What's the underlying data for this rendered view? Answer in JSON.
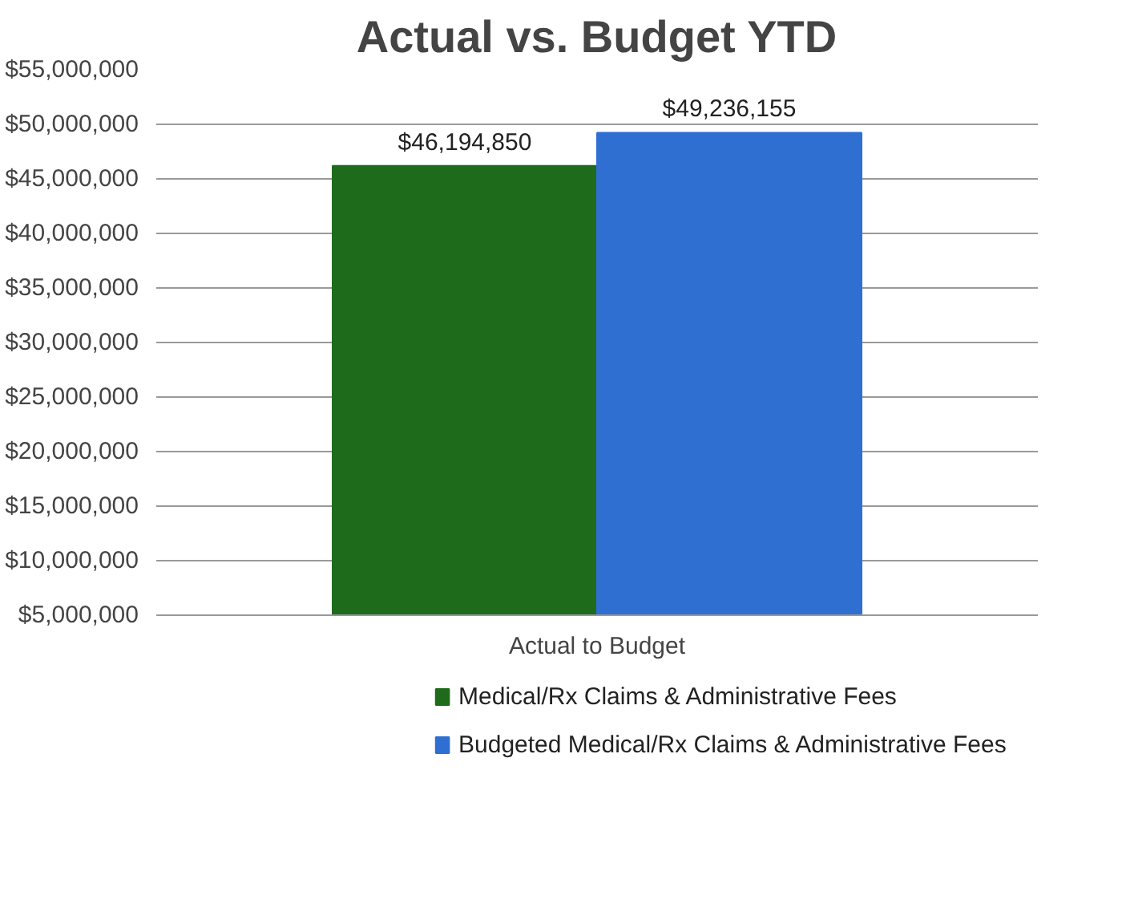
{
  "chart_data": {
    "type": "bar",
    "title": "Actual vs. Budget YTD",
    "categories": [
      "Actual to Budget"
    ],
    "series": [
      {
        "name": "Medical/Rx Claims & Administrative Fees",
        "color": "#1f6b1c",
        "values": [
          46194850
        ],
        "value_labels": [
          "$46,194,850"
        ]
      },
      {
        "name": "Budgeted Medical/Rx Claims & Administrative Fees",
        "color": "#2f6fd1",
        "values": [
          49236155
        ],
        "value_labels": [
          "$49,236,155"
        ]
      }
    ],
    "ylim": [
      5000000,
      55000000
    ],
    "yticks": [
      {
        "value": 5000000,
        "label": "$5,000,000"
      },
      {
        "value": 10000000,
        "label": "$10,000,000"
      },
      {
        "value": 15000000,
        "label": "$15,000,000"
      },
      {
        "value": 20000000,
        "label": "$20,000,000"
      },
      {
        "value": 25000000,
        "label": "$25,000,000"
      },
      {
        "value": 30000000,
        "label": "$30,000,000"
      },
      {
        "value": 35000000,
        "label": "$35,000,000"
      },
      {
        "value": 40000000,
        "label": "$40,000,000"
      },
      {
        "value": 45000000,
        "label": "$45,000,000"
      },
      {
        "value": 50000000,
        "label": "$50,000,000"
      },
      {
        "value": 55000000,
        "label": "$55,000,000"
      }
    ],
    "grid": "y",
    "legend": "bottom"
  }
}
